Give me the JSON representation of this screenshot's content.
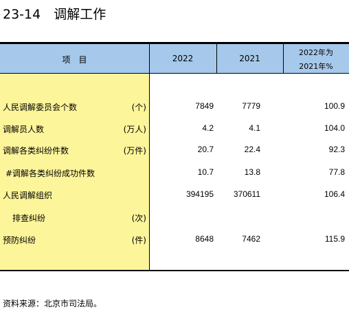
{
  "header": {
    "title": "23-14　调解工作"
  },
  "table": {
    "columns": [
      "项　目",
      "2022",
      "2021",
      "2022年为",
      "2021年%"
    ],
    "rows": [
      [
        "人民调解委员会个数",
        "(个)",
        "7849",
        "7779",
        "100.9"
      ],
      [
        "调解员人数",
        "(万人)",
        "4.2",
        "4.1",
        "104.0"
      ],
      [
        "调解各类纠纷件数",
        "(万件)",
        "20.7",
        "22.4",
        "92.3"
      ],
      [
        "#调解各类纠纷成功件数",
        null,
        "10.7",
        "13.8",
        "77.8"
      ],
      [
        "人民调解组织",
        null,
        "394195",
        "370611",
        "106.4"
      ],
      [
        "排查纠纷",
        "(次)",
        null,
        null,
        null
      ],
      [
        "预防纠纷",
        "(件)",
        "8648",
        "7462",
        "115.9"
      ]
    ]
  },
  "footer": {
    "source": "资料来源：北京市司法局。"
  }
}
